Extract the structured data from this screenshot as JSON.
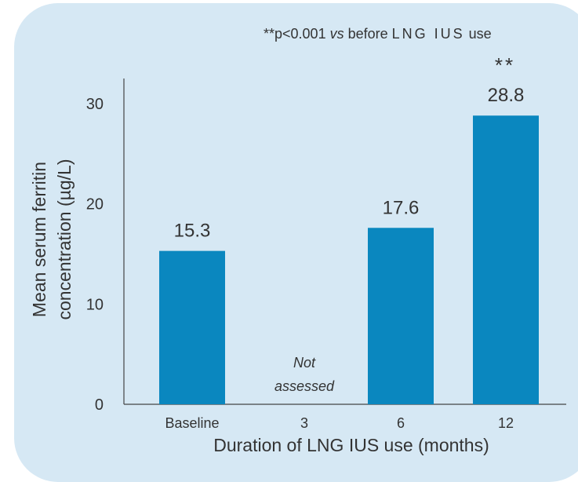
{
  "chart_data": {
    "type": "bar",
    "categories": [
      "Baseline",
      "3",
      "6",
      "12"
    ],
    "values": [
      15.3,
      null,
      17.6,
      28.8
    ],
    "data_labels": [
      "15.3",
      "",
      "17.6",
      "28.8"
    ],
    "annotations": [
      {
        "category": "3",
        "text_line1": "Not",
        "text_line2": "assessed"
      },
      {
        "category": "12",
        "text": "**"
      }
    ],
    "ylabel_line1": "Mean serum ferritin",
    "ylabel_line2": "concentration (µg/L)",
    "xlabel": "Duration of LNG IUS use (months)",
    "yticks": [
      0,
      10,
      20,
      30
    ],
    "ylim": [
      0,
      32.5
    ],
    "footnote": {
      "prefix": "**p<0.001 ",
      "italic": "vs",
      "middle": " before ",
      "spaced": "LNG IUS",
      "suffix": " use"
    },
    "colors": {
      "bar": "#0a87bf",
      "background": "#d6e8f4",
      "axis": "#444444"
    }
  }
}
